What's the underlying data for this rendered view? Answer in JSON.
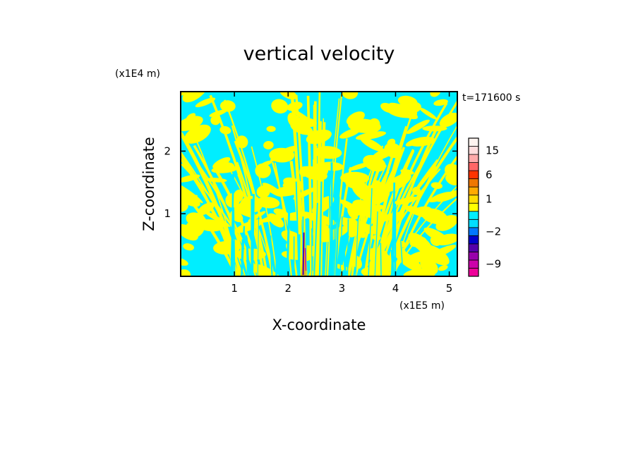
{
  "chart_data": {
    "type": "heatmap",
    "title": "vertical velocity",
    "xlabel": "X-coordinate",
    "ylabel": "Z-coordinate",
    "x_scale_label": "(x1E5 m)",
    "y_scale_label": "(x1E4 m)",
    "time_label": "t=171600 s",
    "xlim": [
      0,
      5.15
    ],
    "ylim": [
      0,
      2.95
    ],
    "x_ticks": [
      1,
      2,
      3,
      4,
      5
    ],
    "y_ticks": [
      1,
      2
    ],
    "grid": false,
    "colorbar": {
      "placement": "right",
      "levels": [
        {
          "color": "#ee0099",
          "level": -11
        },
        {
          "color": "#cc00aa",
          "level": -9
        },
        {
          "color": "#9900aa",
          "level": -7
        },
        {
          "color": "#5500aa",
          "level": -5
        },
        {
          "color": "#0000cc",
          "level": -3
        },
        {
          "color": "#0077ff",
          "level": -2
        },
        {
          "color": "#00ddff",
          "level": -1
        },
        {
          "color": "#00eeff",
          "level": 0
        },
        {
          "color": "#ffff00",
          "level": 0.5
        },
        {
          "color": "#ffdd00",
          "level": 1
        },
        {
          "color": "#ffaa00",
          "level": 2
        },
        {
          "color": "#ee7700",
          "level": 4
        },
        {
          "color": "#ff3300",
          "level": 6
        },
        {
          "color": "#ff6666",
          "level": 9
        },
        {
          "color": "#ffaaaa",
          "level": 12
        },
        {
          "color": "#ffdddd",
          "level": 15
        },
        {
          "color": "#fff4f0",
          "level": 18
        }
      ],
      "tick_labels": [
        "15",
        "6",
        "1",
        "−2",
        "−9"
      ]
    },
    "dominant_colors": {
      "negative": "#00eeff",
      "positive": "#ffff00"
    }
  }
}
